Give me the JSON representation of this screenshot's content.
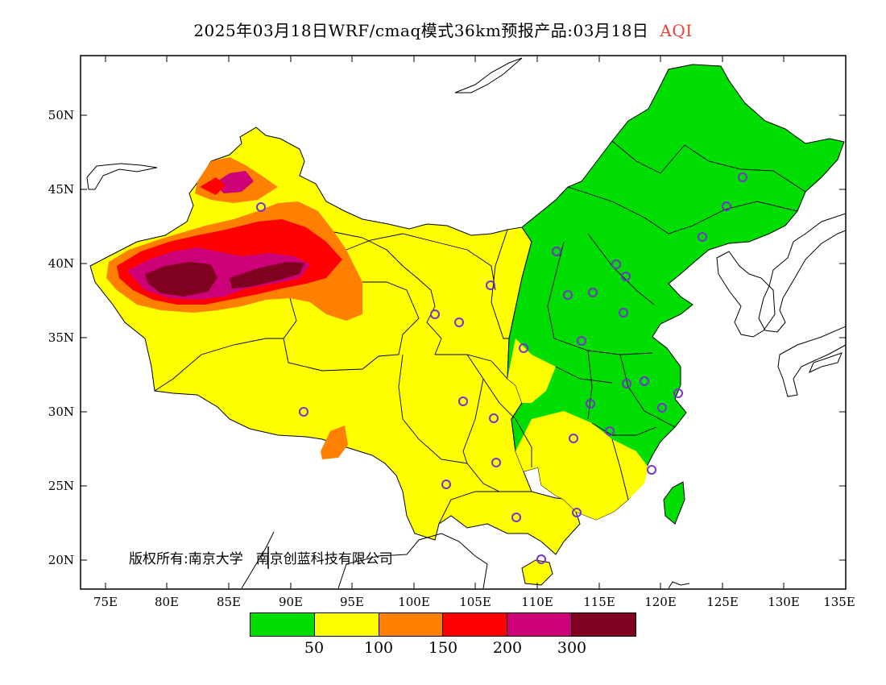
{
  "title": {
    "main": "2025年03月18日WRF/cmaq模式36km预报产品:03月18日",
    "variable": "AQI",
    "variable_color": "#e8413a"
  },
  "axes": {
    "y_ticks": [
      "50N",
      "45N",
      "40N",
      "35N",
      "30N",
      "25N",
      "20N"
    ],
    "x_ticks": [
      "75E",
      "80E",
      "85E",
      "90E",
      "95E",
      "100E",
      "105E",
      "110E",
      "115E",
      "120E",
      "125E",
      "130E",
      "135E"
    ],
    "lon_range": [
      73,
      135
    ],
    "lat_range": [
      18,
      54
    ]
  },
  "copyright": {
    "owner_label": "版权所有:",
    "org1": "南京大学",
    "org2": "南京创蓝科技有限公司"
  },
  "legend": {
    "colors": [
      "#00dd00",
      "#ffff00",
      "#ff8000",
      "#ff0000",
      "#cc0077",
      "#800020"
    ],
    "labels": [
      "50",
      "100",
      "150",
      "200",
      "300"
    ]
  },
  "map": {
    "land_fill": "#00dd00",
    "outline_color": "#000000",
    "station_marker_color": "#7733cc",
    "station_marker_icon": "circle-icon"
  }
}
